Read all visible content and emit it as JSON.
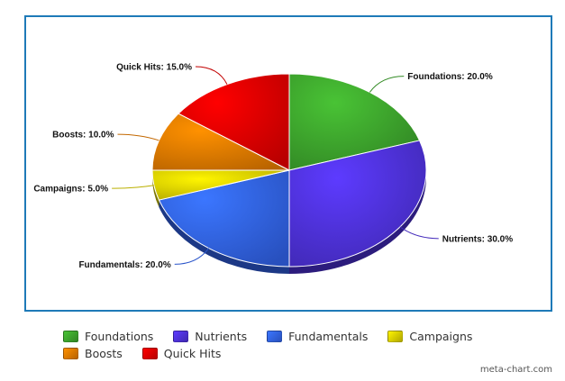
{
  "chart_data": {
    "type": "pie",
    "categories": [
      "Foundations",
      "Nutrients",
      "Fundamentals",
      "Campaigns",
      "Boosts",
      "Quick Hits"
    ],
    "values": [
      20.0,
      30.0,
      20.0,
      5.0,
      10.0,
      15.0
    ],
    "labels": [
      "Foundations: 20.0%",
      "Nutrients: 30.0%",
      "Fundamentals: 20.0%",
      "Campaigns: 5.0%",
      "Boosts: 10.0%",
      "Quick Hits: 15.0%"
    ],
    "colors": [
      "#3a9c2a",
      "#4a2fd0",
      "#2f5ee0",
      "#d0c400",
      "#d97400",
      "#d80000"
    ],
    "title": "",
    "legend_position": "bottom",
    "style": "3d-tilted"
  },
  "credit": "meta-chart.com"
}
